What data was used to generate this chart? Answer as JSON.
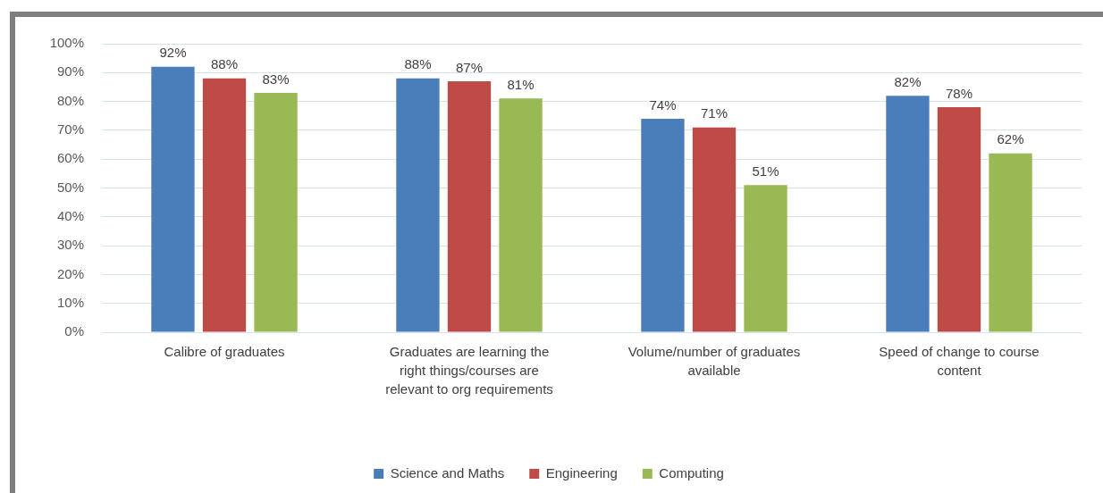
{
  "chart_data": {
    "type": "bar",
    "categories": [
      "Calibre of graduates",
      "Graduates are learning the right things/courses are relevant to org requirements",
      "Volume/number of graduates available",
      "Speed of change to course content"
    ],
    "series": [
      {
        "name": "Science and Maths",
        "color": "#4a7ebb",
        "values": [
          92,
          88,
          74,
          82
        ],
        "value_labels": [
          "92%",
          "88%",
          "74%",
          "82%"
        ]
      },
      {
        "name": "Engineering",
        "color": "#be4b48",
        "values": [
          88,
          87,
          71,
          78
        ],
        "value_labels": [
          "88%",
          "87%",
          "71%",
          "78%"
        ]
      },
      {
        "name": "Computing",
        "color": "#98b954",
        "values": [
          83,
          81,
          51,
          62
        ],
        "value_labels": [
          "83%",
          "81%",
          "51%",
          "62%"
        ]
      }
    ],
    "ylim": [
      0,
      100
    ],
    "yticks": [
      {
        "value": 0,
        "label": "0%"
      },
      {
        "value": 10,
        "label": "10%"
      },
      {
        "value": 20,
        "label": "20%"
      },
      {
        "value": 30,
        "label": "30%"
      },
      {
        "value": 40,
        "label": "40%"
      },
      {
        "value": 50,
        "label": "50%"
      },
      {
        "value": 60,
        "label": "60%"
      },
      {
        "value": 70,
        "label": "70%"
      },
      {
        "value": 80,
        "label": "80%"
      },
      {
        "value": 90,
        "label": "90%"
      },
      {
        "value": 100,
        "label": "100%"
      }
    ],
    "grid": "y",
    "legend": "bottom"
  }
}
